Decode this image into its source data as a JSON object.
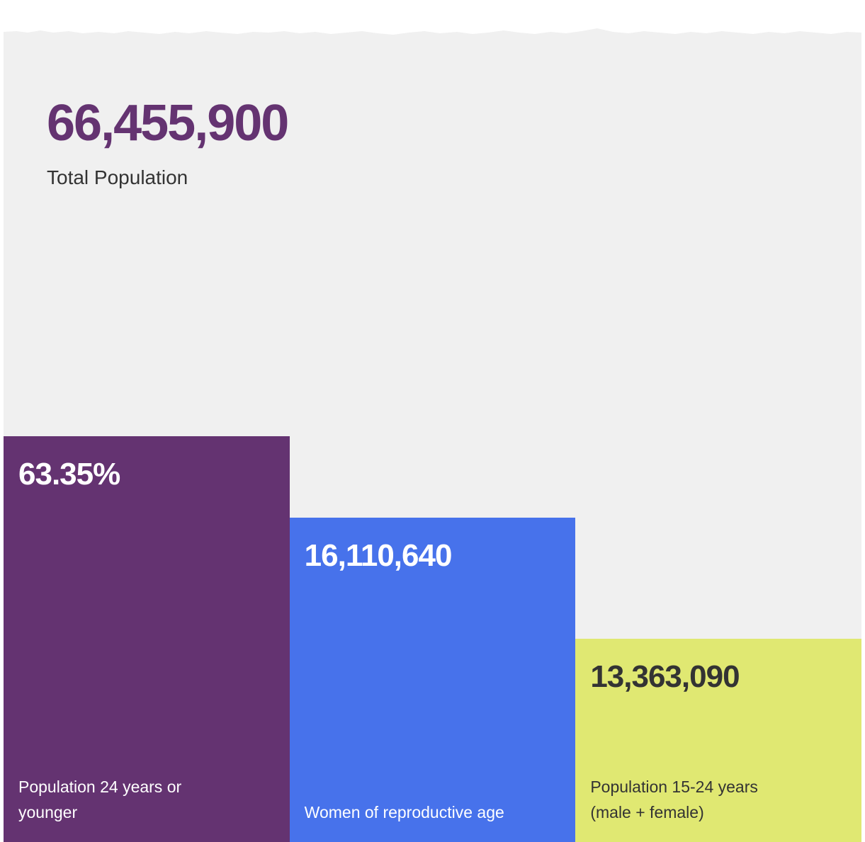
{
  "headline": {
    "value": "66,455,900",
    "label": "Total Population"
  },
  "colors": {
    "panel": "#f0f0f0",
    "headline": "#643371"
  },
  "chart_data": {
    "type": "bar",
    "categories": [
      "Population 24 years or younger",
      "Women of reproductive age",
      "Population 15-24 years (male + female)"
    ],
    "bars": [
      {
        "value_text": "63.35%",
        "label": "Population 24 years or younger",
        "color": "#643371",
        "text_color": "#ffffff",
        "relative_height": 1.0
      },
      {
        "value_text": "16,110,640",
        "label": "Women of reproductive age",
        "color": "#4772eb",
        "text_color": "#ffffff",
        "relative_height": 0.8
      },
      {
        "value_text": "13,363,090",
        "label": "Population 15-24 years (male + female)",
        "color": "#e0e872",
        "text_color": "#333333",
        "relative_height": 0.5
      }
    ]
  }
}
